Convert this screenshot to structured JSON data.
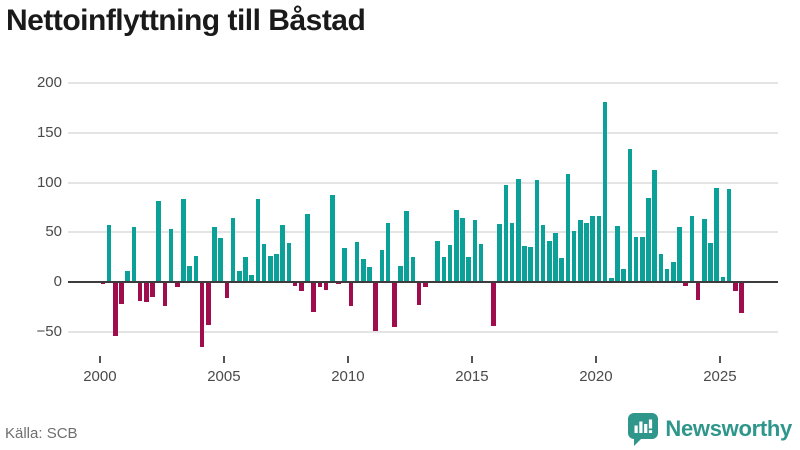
{
  "title": "Nettoinflyttning till Båstad",
  "source": {
    "label": "Källa: SCB"
  },
  "branding": {
    "name": "Newsworthy",
    "color": "#2f968c",
    "icon": "newsworthy-chart-bubble-icon"
  },
  "chart_data": {
    "type": "bar",
    "title": "Nettoinflyttning till Båstad",
    "xlabel": "",
    "ylabel": "",
    "ylim": [
      -50,
      200
    ],
    "yticks": [
      -50,
      0,
      50,
      100,
      150,
      200
    ],
    "xticks": [
      2000,
      2005,
      2010,
      2015,
      2020,
      2025
    ],
    "grid": "horizontal",
    "legend": "none",
    "bar_period": "quarterly",
    "colors": {
      "positive": "#0ba198",
      "negative": "#a00d4c",
      "gridline": "#e4e4e4",
      "zeroline": "#3c3c3c",
      "tick_label": "#4a4a4a"
    },
    "years": [
      {
        "year": 2000,
        "q": [
          -2,
          57,
          -54,
          -22
        ]
      },
      {
        "year": 2001,
        "q": [
          11,
          55,
          -19,
          -20
        ]
      },
      {
        "year": 2002,
        "q": [
          -15,
          81,
          -24,
          53
        ]
      },
      {
        "year": 2003,
        "q": [
          -5,
          83,
          16,
          26
        ]
      },
      {
        "year": 2004,
        "q": [
          -65,
          -43,
          55,
          44
        ]
      },
      {
        "year": 2005,
        "q": [
          -16,
          64,
          11,
          25
        ]
      },
      {
        "year": 2006,
        "q": [
          7,
          83,
          38,
          26
        ]
      },
      {
        "year": 2007,
        "q": [
          28,
          57,
          39,
          -4
        ]
      },
      {
        "year": 2008,
        "q": [
          -9,
          68,
          -30,
          -5
        ]
      },
      {
        "year": 2009,
        "q": [
          -8,
          87,
          -2,
          34
        ]
      },
      {
        "year": 2010,
        "q": [
          -24,
          40,
          23,
          15
        ]
      },
      {
        "year": 2011,
        "q": [
          -49,
          32,
          59,
          -45
        ]
      },
      {
        "year": 2012,
        "q": [
          16,
          71,
          25,
          -23
        ]
      },
      {
        "year": 2013,
        "q": [
          -5,
          0,
          41,
          25
        ]
      },
      {
        "year": 2014,
        "q": [
          37,
          72,
          64,
          25
        ]
      },
      {
        "year": 2015,
        "q": [
          62,
          38,
          0,
          -44
        ]
      },
      {
        "year": 2016,
        "q": [
          58,
          97,
          59,
          104
        ]
      },
      {
        "year": 2017,
        "q": [
          36,
          35,
          103,
          57
        ]
      },
      {
        "year": 2018,
        "q": [
          41,
          49,
          24,
          109
        ]
      },
      {
        "year": 2019,
        "q": [
          51,
          62,
          59,
          66
        ]
      },
      {
        "year": 2020,
        "q": [
          66,
          181,
          4,
          56
        ]
      },
      {
        "year": 2021,
        "q": [
          13,
          134,
          45,
          45
        ]
      },
      {
        "year": 2022,
        "q": [
          84,
          113,
          28,
          13
        ]
      },
      {
        "year": 2023,
        "q": [
          20,
          55,
          -4,
          66
        ]
      },
      {
        "year": 2024,
        "q": [
          -18,
          63,
          39,
          94
        ]
      },
      {
        "year": 2025,
        "q": [
          5,
          93,
          -9,
          -31
        ]
      }
    ]
  }
}
